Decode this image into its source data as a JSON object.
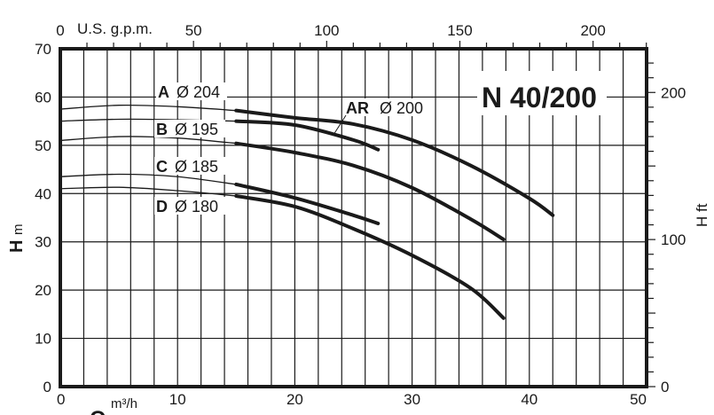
{
  "chart_data": {
    "type": "line",
    "title": "N 40/200",
    "xlabel": "Q",
    "xlabel_unit": "m³/h",
    "ylabel": "H",
    "ylabel_unit": "m",
    "x2label": "U.S. g.p.m.",
    "y2label": "H ft",
    "xlim": [
      0,
      50
    ],
    "ylim": [
      0,
      70
    ],
    "x2lim": [
      0,
      220.1
    ],
    "y2lim": [
      0,
      229.7
    ],
    "grid": true,
    "x_ticks": [
      "0",
      "10",
      "20",
      "30",
      "40",
      "50"
    ],
    "y_ticks": [
      "0",
      "10",
      "20",
      "30",
      "40",
      "50",
      "60",
      "70"
    ],
    "x2_ticks": [
      "0",
      "50",
      "100",
      "150",
      "200"
    ],
    "y2_ticks": [
      "0",
      "100",
      "200"
    ],
    "thick_from_q": 15,
    "series": [
      {
        "name": "A",
        "diameter": "Ø 204",
        "x": [
          0,
          5,
          10,
          15,
          20,
          25,
          30,
          35,
          40,
          42
        ],
        "y": [
          57.5,
          58.3,
          58.0,
          57.2,
          55.7,
          54.4,
          51.1,
          45.8,
          39.0,
          35.5
        ]
      },
      {
        "name": "AR",
        "diameter": "Ø 200",
        "x": [
          0,
          5,
          10,
          15,
          20,
          25,
          27.1
        ],
        "y": [
          55.0,
          55.4,
          55.3,
          55.0,
          54.2,
          51.1,
          49.1
        ]
      },
      {
        "name": "B",
        "diameter": "Ø 195",
        "x": [
          0,
          5,
          10,
          15,
          20,
          25,
          30,
          35,
          37.8
        ],
        "y": [
          51.0,
          51.8,
          51.5,
          50.4,
          48.5,
          45.8,
          41.2,
          34.7,
          30.5
        ]
      },
      {
        "name": "C",
        "diameter": "Ø 185",
        "x": [
          0,
          5,
          10,
          15,
          20,
          25,
          27.1
        ],
        "y": [
          43.5,
          44.0,
          43.5,
          41.9,
          39.1,
          35.5,
          33.8
        ]
      },
      {
        "name": "D",
        "diameter": "Ø 180",
        "x": [
          0,
          5,
          10,
          15,
          20,
          25,
          30,
          35,
          37.8
        ],
        "y": [
          41.0,
          41.3,
          40.6,
          39.5,
          37.3,
          32.7,
          27.2,
          20.4,
          14.2
        ]
      }
    ]
  }
}
